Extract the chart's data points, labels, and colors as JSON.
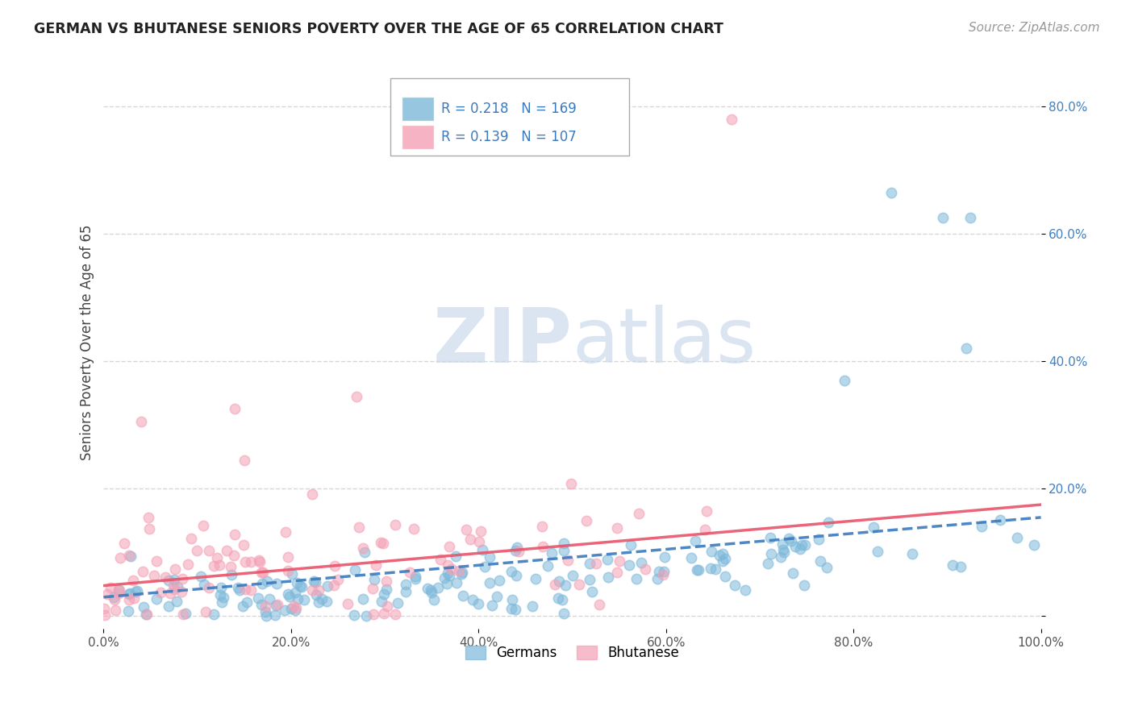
{
  "title": "GERMAN VS BHUTANESE SENIORS POVERTY OVER THE AGE OF 65 CORRELATION CHART",
  "source": "Source: ZipAtlas.com",
  "ylabel": "Seniors Poverty Over the Age of 65",
  "xlabel": "",
  "xlim": [
    0.0,
    1.0
  ],
  "ylim": [
    -0.02,
    0.88
  ],
  "xticks": [
    0.0,
    0.2,
    0.4,
    0.6,
    0.8,
    1.0
  ],
  "xticklabels": [
    "0.0%",
    "20.0%",
    "40.0%",
    "60.0%",
    "80.0%",
    "100.0%"
  ],
  "yticks": [
    0.0,
    0.2,
    0.4,
    0.6,
    0.8
  ],
  "yticklabels": [
    "",
    "20.0%",
    "40.0%",
    "60.0%",
    "80.0%"
  ],
  "german_color": "#7db8da",
  "bhutanese_color": "#f4a0b5",
  "german_R": 0.218,
  "german_N": 169,
  "bhutanese_R": 0.139,
  "bhutanese_N": 107,
  "watermark_zip": "ZIP",
  "watermark_atlas": "atlas",
  "legend_labels": [
    "Germans",
    "Bhutanese"
  ],
  "background_color": "#ffffff",
  "grid_color": "#cccccc",
  "trend_german_color": "#3a7abf",
  "trend_bhutanese_color": "#e8546a",
  "title_color": "#222222",
  "source_color": "#999999",
  "tick_color": "#555555",
  "ylabel_color": "#444444"
}
